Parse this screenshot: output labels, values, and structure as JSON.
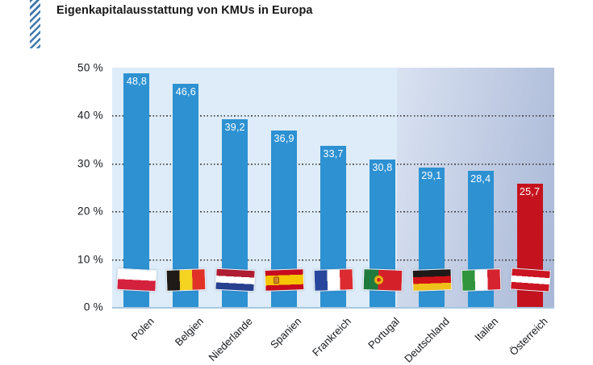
{
  "chart_data": {
    "type": "bar",
    "title": "Eigenkapitalausstattung von KMUs in Europa",
    "categories": [
      "Polen",
      "Belgien",
      "Niederlande",
      "Spanien",
      "Frankreich",
      "Portugal",
      "Deutschland",
      "Italien",
      "Österreich"
    ],
    "values": [
      48.8,
      46.6,
      39.2,
      36.9,
      33.7,
      30.8,
      29.1,
      28.4,
      25.7
    ],
    "value_labels": [
      "48,8",
      "46,6",
      "39,2",
      "36,9",
      "33,7",
      "30,8",
      "29,1",
      "28,4",
      "25,7"
    ],
    "flags": [
      "poland",
      "belgium",
      "netherlands",
      "spain",
      "france",
      "portugal",
      "germany",
      "italy",
      "austria"
    ],
    "highlight_index": 8,
    "xlabel": "",
    "ylabel": "",
    "ylim": [
      0,
      50
    ],
    "ytick_values": [
      0,
      10,
      20,
      30,
      40,
      50
    ],
    "ytick_labels": [
      "0 %",
      "10 %",
      "20 %",
      "30 %",
      "40 %",
      "50 %"
    ],
    "grid": "horizontal dotted lines at 10/20/30/40, solid baseline at 0",
    "legend": "none",
    "bar_unit": "percent equity ratio"
  },
  "colors": {
    "bar_default": "#2d91d2",
    "bar_highlight": "#c4131f",
    "plot_background": "#ddecf8",
    "highlight_zone_start": "#d9e2f1",
    "highlight_zone_end": "#aab8d7",
    "grid_dots": "#3c3c3c",
    "baseline": "#a9c7e0",
    "hatch_stripe": "#4079ad",
    "title_color": "#191919"
  }
}
